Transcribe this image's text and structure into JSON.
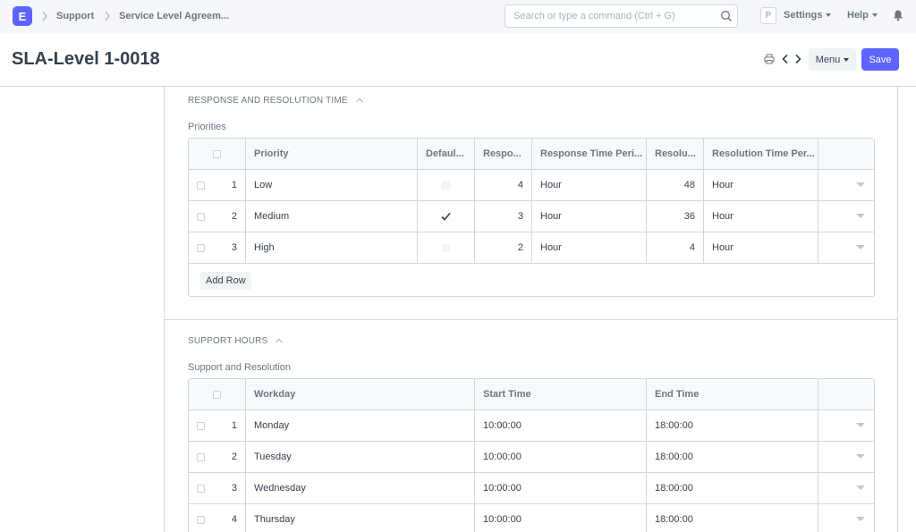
{
  "navbar": {
    "logo": "E",
    "breadcrumbs": [
      "Support",
      "Service Level Agreem..."
    ],
    "search_placeholder": "Search or type a command (Ctrl + G)",
    "avatar_initial": "P",
    "settings_label": "Settings",
    "help_label": "Help"
  },
  "page": {
    "title": "SLA-Level 1-0018",
    "menu_label": "Menu",
    "save_label": "Save"
  },
  "section_response": {
    "heading": "RESPONSE AND RESOLUTION TIME",
    "field_label": "Priorities",
    "columns": [
      "Priority",
      "Defaul...",
      "Respo...",
      "Response Time Peri...",
      "Resolu...",
      "Resolution Time Per..."
    ],
    "rows": [
      {
        "idx": "1",
        "priority": "Low",
        "default": false,
        "response": "4",
        "response_period": "Hour",
        "resolution": "48",
        "resolution_period": "Hour"
      },
      {
        "idx": "2",
        "priority": "Medium",
        "default": true,
        "response": "3",
        "response_period": "Hour",
        "resolution": "36",
        "resolution_period": "Hour"
      },
      {
        "idx": "3",
        "priority": "High",
        "default": false,
        "response": "2",
        "response_period": "Hour",
        "resolution": "4",
        "resolution_period": "Hour"
      }
    ],
    "add_row_label": "Add Row"
  },
  "section_support": {
    "heading": "SUPPORT HOURS",
    "field_label": "Support and Resolution",
    "columns": [
      "Workday",
      "Start Time",
      "End Time"
    ],
    "rows": [
      {
        "idx": "1",
        "workday": "Monday",
        "start": "10:00:00",
        "end": "18:00:00"
      },
      {
        "idx": "2",
        "workday": "Tuesday",
        "start": "10:00:00",
        "end": "18:00:00"
      },
      {
        "idx": "3",
        "workday": "Wednesday",
        "start": "10:00:00",
        "end": "18:00:00"
      },
      {
        "idx": "4",
        "workday": "Thursday",
        "start": "10:00:00",
        "end": "18:00:00"
      }
    ]
  },
  "icons": {
    "logo": "app-logo",
    "search": "search-icon",
    "bell": "bell-icon",
    "print": "print-icon",
    "prev": "chevron-left-icon",
    "next": "chevron-right-icon",
    "collapse": "chevron-up-icon",
    "row_menu": "caret-down-icon",
    "check": "checkmark-icon"
  },
  "colors": {
    "primary": "#5e64ff",
    "text": "#36414c",
    "muted": "#6c7680",
    "border": "#d1d8dd",
    "navbar_bg": "#f5f7fa"
  }
}
